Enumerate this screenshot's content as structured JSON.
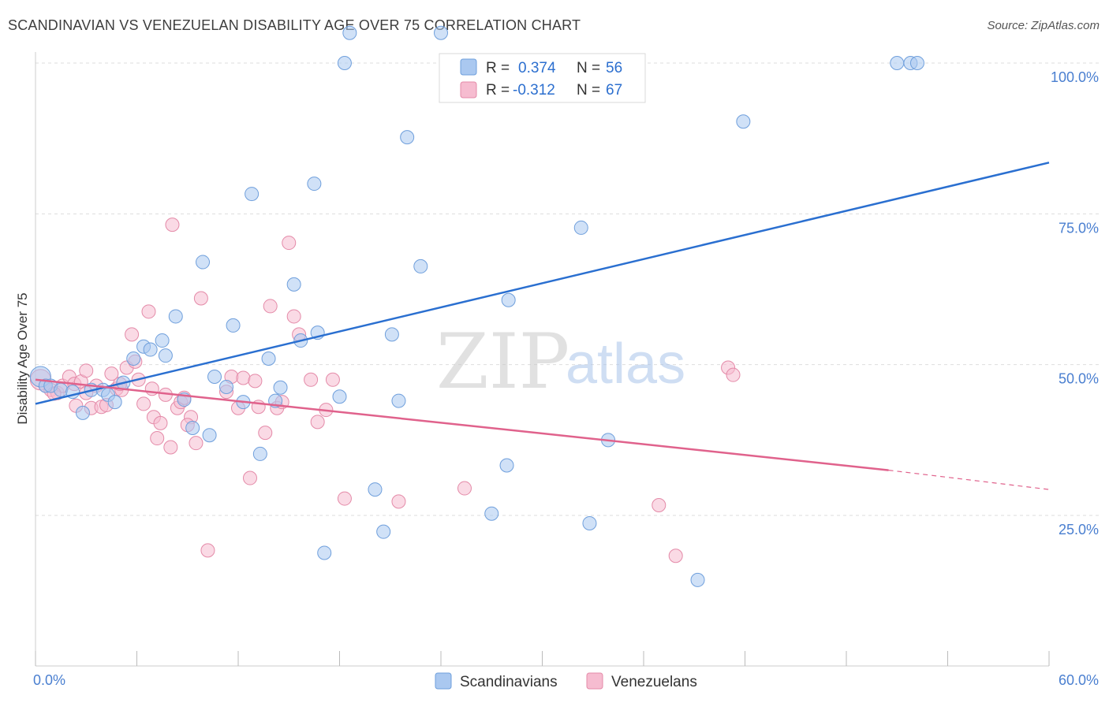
{
  "header": {
    "title": "SCANDINAVIAN VS VENEZUELAN DISABILITY AGE OVER 75 CORRELATION CHART",
    "source": "Source: ZipAtlas.com"
  },
  "legend_top": {
    "rows": [
      {
        "r_label": "R =",
        "r_value": "0.374",
        "n_label": "N =",
        "n_value": "56"
      },
      {
        "r_label": "R =",
        "r_value": "-0.312",
        "n_label": "N =",
        "n_value": "67"
      }
    ]
  },
  "legend_bottom": [
    "Scandinavians",
    "Venezuelans"
  ],
  "watermark": {
    "zip": "ZIP",
    "atlas": "atlas"
  },
  "colors": {
    "scandinavian_fill": "#aac8f0",
    "scandinavian_stroke": "#6f9fdc",
    "scandinavian_line": "#2a6fd0",
    "venezuelan_fill": "#f6bcd0",
    "venezuelan_stroke": "#e48aa8",
    "venezuelan_line": "#e0628c",
    "tick_label": "#4a7fd0",
    "grid": "#dddddd"
  },
  "chart_data": {
    "type": "scatter",
    "title": "SCANDINAVIAN VS VENEZUELAN DISABILITY AGE OVER 75 CORRELATION CHART",
    "xlabel": "",
    "ylabel": "Disability Age Over 75",
    "xlim": [
      0,
      60
    ],
    "ylim": [
      0,
      104
    ],
    "x_tick_labels": [
      "0.0%",
      "60.0%"
    ],
    "y_ticks": [
      25,
      50,
      75,
      100
    ],
    "y_tick_labels": [
      "25.0%",
      "50.0%",
      "75.0%",
      "100.0%"
    ],
    "grid": true,
    "legend_position": "top-center",
    "series": [
      {
        "name": "Scandinavians",
        "r": 0.374,
        "n": 56,
        "trend": {
          "x0": 0,
          "y0": 43.5,
          "x1": 60,
          "y1": 83.5
        },
        "points": [
          [
            0.3,
            48
          ],
          [
            0.6,
            46.5
          ],
          [
            0.9,
            46.5
          ],
          [
            1.5,
            45.8
          ],
          [
            2.2,
            45.5
          ],
          [
            2.8,
            42
          ],
          [
            3.3,
            45.8
          ],
          [
            4.0,
            45.8
          ],
          [
            4.3,
            45
          ],
          [
            4.7,
            43.8
          ],
          [
            5.2,
            47
          ],
          [
            5.8,
            51
          ],
          [
            6.4,
            53
          ],
          [
            6.8,
            52.5
          ],
          [
            7.5,
            54
          ],
          [
            7.7,
            51.5
          ],
          [
            8.3,
            58
          ],
          [
            8.8,
            44.2
          ],
          [
            9.3,
            39.5
          ],
          [
            9.9,
            67
          ],
          [
            10.3,
            38.3
          ],
          [
            10.6,
            48
          ],
          [
            11.3,
            46.3
          ],
          [
            11.7,
            56.5
          ],
          [
            12.3,
            43.8
          ],
          [
            12.8,
            78.3
          ],
          [
            13.3,
            35.2
          ],
          [
            13.8,
            51
          ],
          [
            14.2,
            44
          ],
          [
            14.5,
            46.2
          ],
          [
            15.3,
            63.3
          ],
          [
            15.7,
            54
          ],
          [
            16.5,
            80
          ],
          [
            16.7,
            55.3
          ],
          [
            17.1,
            18.8
          ],
          [
            18.0,
            44.7
          ],
          [
            18.3,
            100
          ],
          [
            18.6,
            105
          ],
          [
            20.1,
            29.3
          ],
          [
            20.6,
            22.3
          ],
          [
            21.1,
            55
          ],
          [
            21.5,
            44
          ],
          [
            22.0,
            87.7
          ],
          [
            22.8,
            66.3
          ],
          [
            24.0,
            105
          ],
          [
            27.0,
            25.3
          ],
          [
            27.9,
            33.3
          ],
          [
            28.0,
            60.7
          ],
          [
            32.3,
            72.7
          ],
          [
            32.8,
            23.7
          ],
          [
            33.9,
            37.5
          ],
          [
            39.2,
            14.3
          ],
          [
            41.9,
            90.3
          ],
          [
            51.0,
            100
          ],
          [
            51.8,
            100
          ],
          [
            52.2,
            100
          ]
        ]
      },
      {
        "name": "Venezuelans",
        "r": -0.312,
        "n": 67,
        "trend": {
          "x0": 0,
          "y0": 47.5,
          "x1": 50.5,
          "y1": 32.5,
          "dash_x1": 60,
          "dash_y1": 29.3
        },
        "points": [
          [
            0.3,
            47.5
          ],
          [
            0.6,
            46.5
          ],
          [
            0.9,
            45.8
          ],
          [
            1.3,
            45.3
          ],
          [
            1.6,
            46.5
          ],
          [
            2.0,
            48
          ],
          [
            2.3,
            46.8
          ],
          [
            2.7,
            47.2
          ],
          [
            3.0,
            49
          ],
          [
            3.3,
            42.8
          ],
          [
            3.6,
            46.5
          ],
          [
            3.9,
            43
          ],
          [
            4.2,
            43.3
          ],
          [
            4.5,
            48.5
          ],
          [
            4.8,
            46
          ],
          [
            5.1,
            45.8
          ],
          [
            5.4,
            49.5
          ],
          [
            5.7,
            55
          ],
          [
            5.9,
            50.5
          ],
          [
            6.1,
            47.5
          ],
          [
            6.4,
            43.5
          ],
          [
            6.7,
            58.8
          ],
          [
            7.0,
            41.3
          ],
          [
            7.2,
            37.8
          ],
          [
            7.4,
            40.3
          ],
          [
            7.7,
            45
          ],
          [
            8.0,
            36.3
          ],
          [
            8.4,
            42.8
          ],
          [
            8.6,
            43.8
          ],
          [
            8.8,
            44.5
          ],
          [
            9.2,
            41.3
          ],
          [
            9.5,
            37
          ],
          [
            9.8,
            61
          ],
          [
            8.1,
            73.2
          ],
          [
            10.2,
            19.2
          ],
          [
            11.3,
            45.5
          ],
          [
            11.6,
            48
          ],
          [
            12.0,
            42.8
          ],
          [
            12.3,
            47.8
          ],
          [
            12.7,
            31.2
          ],
          [
            13.2,
            43
          ],
          [
            13.6,
            38.7
          ],
          [
            13.9,
            59.7
          ],
          [
            14.3,
            42.8
          ],
          [
            14.6,
            43.8
          ],
          [
            15.0,
            70.2
          ],
          [
            15.3,
            58
          ],
          [
            15.6,
            55
          ],
          [
            16.3,
            47.5
          ],
          [
            16.7,
            40.5
          ],
          [
            17.2,
            42.5
          ],
          [
            17.6,
            47.5
          ],
          [
            18.3,
            27.8
          ],
          [
            21.5,
            27.3
          ],
          [
            25.4,
            29.5
          ],
          [
            27.8,
            100
          ],
          [
            36.9,
            26.7
          ],
          [
            37.9,
            18.3
          ],
          [
            41.0,
            49.5
          ],
          [
            41.3,
            48.3
          ],
          [
            3.0,
            45.3
          ],
          [
            2.4,
            43.2
          ],
          [
            6.9,
            46.0
          ],
          [
            9.0,
            40.0
          ],
          [
            13.0,
            47.3
          ],
          [
            5.0,
            46.8
          ],
          [
            1.1,
            45.2
          ]
        ]
      }
    ]
  }
}
